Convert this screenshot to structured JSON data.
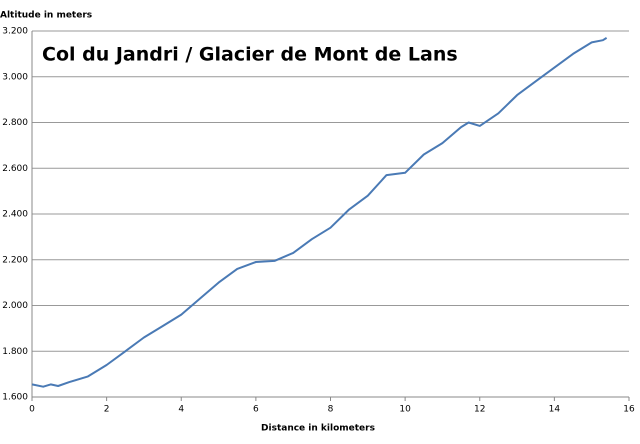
{
  "chart_data": {
    "type": "line",
    "title": "Col du Jandri / Glacier de Mont de Lans",
    "y_label": "Altitude in meters",
    "x_label": "Distance in kilometers",
    "x": [
      0,
      0.3,
      0.5,
      0.7,
      1.0,
      1.5,
      2,
      2.5,
      3,
      3.5,
      4,
      4.5,
      5,
      5.5,
      6,
      6.5,
      7,
      7.5,
      8,
      8.5,
      9,
      9.5,
      10,
      10.5,
      11,
      11.5,
      11.7,
      12,
      12.5,
      13,
      13.5,
      14,
      14.5,
      15,
      15.3,
      15.4
    ],
    "series": [
      {
        "color": "#4a7ab5",
        "values": [
          1655,
          1645,
          1655,
          1648,
          1665,
          1690,
          1740,
          1800,
          1860,
          1910,
          1960,
          2030,
          2100,
          2160,
          2190,
          2195,
          2230,
          2290,
          2340,
          2420,
          2480,
          2570,
          2580,
          2660,
          2710,
          2780,
          2800,
          2785,
          2840,
          2920,
          2980,
          3040,
          3100,
          3150,
          3160,
          3170
        ]
      }
    ],
    "xlim": [
      0,
      16
    ],
    "xticks": [
      0,
      2,
      4,
      6,
      8,
      10,
      12,
      14,
      16
    ],
    "ylim": [
      1600,
      3200
    ],
    "yticks": [
      {
        "value": 1600,
        "label": "1.600"
      },
      {
        "value": 1800,
        "label": "1.800"
      },
      {
        "value": 2000,
        "label": "2.000"
      },
      {
        "value": 2200,
        "label": "2.200"
      },
      {
        "value": 2400,
        "label": "2.400"
      },
      {
        "value": 2600,
        "label": "2.600"
      },
      {
        "value": 2800,
        "label": "2.800"
      },
      {
        "value": 3000,
        "label": "3.000"
      },
      {
        "value": 3200,
        "label": "3.200"
      }
    ],
    "grid": true
  }
}
